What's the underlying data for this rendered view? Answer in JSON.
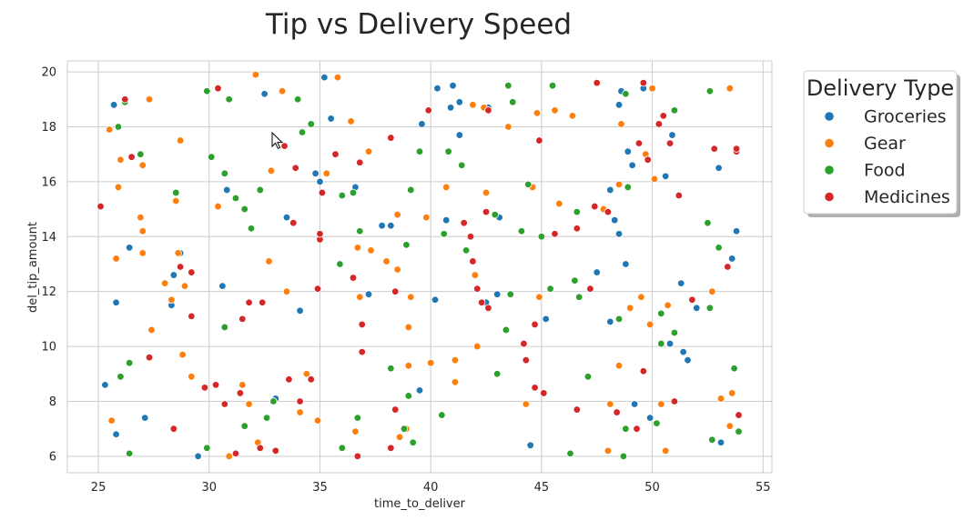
{
  "chart_data": {
    "type": "scatter",
    "title": "Tip vs Delivery Speed",
    "xlabel": "time_to_deliver",
    "ylabel": "del_tip_amount",
    "xlim": [
      23.6,
      55.4
    ],
    "ylim": [
      5.4,
      20.4
    ],
    "xticks": [
      25,
      30,
      35,
      40,
      45,
      50,
      55
    ],
    "yticks": [
      6,
      8,
      10,
      12,
      14,
      16,
      18,
      20
    ],
    "grid": true,
    "legend": {
      "title": "Delivery Type",
      "placement": "outside-top-right",
      "entries": [
        "Groceries",
        "Gear",
        "Food",
        "Medicines"
      ]
    },
    "series": [
      {
        "name": "Groceries",
        "color": "#1f77b4",
        "points": [
          [
            25.3,
            8.6
          ],
          [
            25.7,
            18.8
          ],
          [
            25.8,
            11.6
          ],
          [
            25.8,
            6.8
          ],
          [
            26.4,
            13.6
          ],
          [
            27.1,
            7.4
          ],
          [
            28.4,
            12.6
          ],
          [
            28.3,
            11.5
          ],
          [
            28.7,
            13.4
          ],
          [
            29.5,
            6.0
          ],
          [
            30.6,
            12.2
          ],
          [
            30.8,
            15.7
          ],
          [
            32.5,
            19.2
          ],
          [
            33.0,
            8.1
          ],
          [
            33.5,
            14.7
          ],
          [
            34.1,
            11.3
          ],
          [
            34.8,
            16.3
          ],
          [
            35.0,
            16.0
          ],
          [
            35.2,
            19.8
          ],
          [
            35.5,
            18.3
          ],
          [
            36.6,
            15.8
          ],
          [
            37.2,
            11.9
          ],
          [
            37.8,
            14.4
          ],
          [
            38.2,
            14.4
          ],
          [
            39.5,
            8.4
          ],
          [
            39.6,
            18.1
          ],
          [
            40.2,
            11.7
          ],
          [
            40.3,
            19.4
          ],
          [
            40.7,
            14.6
          ],
          [
            40.9,
            18.7
          ],
          [
            41.0,
            19.5
          ],
          [
            41.3,
            18.9
          ],
          [
            41.3,
            17.7
          ],
          [
            42.5,
            11.6
          ],
          [
            42.6,
            18.7
          ],
          [
            43.0,
            11.9
          ],
          [
            43.1,
            14.7
          ],
          [
            44.5,
            6.4
          ],
          [
            45.2,
            11.0
          ],
          [
            47.5,
            12.7
          ],
          [
            48.1,
            15.7
          ],
          [
            48.1,
            10.9
          ],
          [
            48.3,
            14.6
          ],
          [
            48.5,
            18.8
          ],
          [
            48.6,
            19.3
          ],
          [
            48.5,
            14.1
          ],
          [
            48.8,
            13.0
          ],
          [
            48.9,
            17.1
          ],
          [
            49.1,
            16.6
          ],
          [
            49.2,
            7.9
          ],
          [
            49.6,
            19.4
          ],
          [
            49.9,
            7.4
          ],
          [
            50.6,
            16.2
          ],
          [
            50.8,
            10.1
          ],
          [
            50.9,
            17.7
          ],
          [
            51.3,
            12.3
          ],
          [
            51.4,
            9.8
          ],
          [
            51.6,
            9.5
          ],
          [
            52.0,
            11.4
          ],
          [
            53.0,
            16.5
          ],
          [
            53.1,
            6.5
          ],
          [
            53.6,
            13.2
          ],
          [
            53.8,
            14.2
          ]
        ]
      },
      {
        "name": "Gear",
        "color": "#ff7f0e",
        "points": [
          [
            25.5,
            17.9
          ],
          [
            25.6,
            7.3
          ],
          [
            25.8,
            13.2
          ],
          [
            25.9,
            15.8
          ],
          [
            26.0,
            16.8
          ],
          [
            26.9,
            14.7
          ],
          [
            27.0,
            14.2
          ],
          [
            27.0,
            16.6
          ],
          [
            27.0,
            13.4
          ],
          [
            27.3,
            19.0
          ],
          [
            27.4,
            10.6
          ],
          [
            28.0,
            12.3
          ],
          [
            28.3,
            11.7
          ],
          [
            28.5,
            15.3
          ],
          [
            28.6,
            13.4
          ],
          [
            28.7,
            17.5
          ],
          [
            28.8,
            9.7
          ],
          [
            28.9,
            12.2
          ],
          [
            29.2,
            8.9
          ],
          [
            30.4,
            15.1
          ],
          [
            30.9,
            6.0
          ],
          [
            31.5,
            8.6
          ],
          [
            31.8,
            7.9
          ],
          [
            32.1,
            19.9
          ],
          [
            32.2,
            6.5
          ],
          [
            32.7,
            13.1
          ],
          [
            32.8,
            16.4
          ],
          [
            33.3,
            19.3
          ],
          [
            33.5,
            12.0
          ],
          [
            34.1,
            7.6
          ],
          [
            34.4,
            9.0
          ],
          [
            34.9,
            7.3
          ],
          [
            35.3,
            16.3
          ],
          [
            35.8,
            19.8
          ],
          [
            36.4,
            18.2
          ],
          [
            36.6,
            6.9
          ],
          [
            36.7,
            13.6
          ],
          [
            36.8,
            11.8
          ],
          [
            37.2,
            17.1
          ],
          [
            37.3,
            13.5
          ],
          [
            38.0,
            13.1
          ],
          [
            38.5,
            14.8
          ],
          [
            38.5,
            12.8
          ],
          [
            38.6,
            6.7
          ],
          [
            38.9,
            7.0
          ],
          [
            39.0,
            10.7
          ],
          [
            39.0,
            9.3
          ],
          [
            39.1,
            11.8
          ],
          [
            39.8,
            14.7
          ],
          [
            40.0,
            9.4
          ],
          [
            40.7,
            15.8
          ],
          [
            41.1,
            9.5
          ],
          [
            41.1,
            8.7
          ],
          [
            41.9,
            18.8
          ],
          [
            42.0,
            12.6
          ],
          [
            42.1,
            10.0
          ],
          [
            42.4,
            18.7
          ],
          [
            42.5,
            15.6
          ],
          [
            43.5,
            18.0
          ],
          [
            44.3,
            7.9
          ],
          [
            44.6,
            15.8
          ],
          [
            44.8,
            18.5
          ],
          [
            44.9,
            11.8
          ],
          [
            45.6,
            18.6
          ],
          [
            45.8,
            15.2
          ],
          [
            46.4,
            18.4
          ],
          [
            46.6,
            14.9
          ],
          [
            47.8,
            15.0
          ],
          [
            48.0,
            6.2
          ],
          [
            48.1,
            7.9
          ],
          [
            48.5,
            9.3
          ],
          [
            48.5,
            15.9
          ],
          [
            48.6,
            18.1
          ],
          [
            49.0,
            11.4
          ],
          [
            49.5,
            11.8
          ],
          [
            49.7,
            17.0
          ],
          [
            49.9,
            10.8
          ],
          [
            50.0,
            19.4
          ],
          [
            50.1,
            16.1
          ],
          [
            50.4,
            7.9
          ],
          [
            50.6,
            6.2
          ],
          [
            50.7,
            11.5
          ],
          [
            52.7,
            12.0
          ],
          [
            53.1,
            8.1
          ],
          [
            53.5,
            7.1
          ],
          [
            53.5,
            19.4
          ],
          [
            53.6,
            8.3
          ]
        ]
      },
      {
        "name": "Food",
        "color": "#2ca02c",
        "points": [
          [
            25.9,
            18.0
          ],
          [
            26.0,
            8.9
          ],
          [
            26.2,
            18.9
          ],
          [
            26.4,
            9.4
          ],
          [
            26.4,
            6.1
          ],
          [
            26.9,
            17.0
          ],
          [
            28.5,
            15.6
          ],
          [
            29.9,
            19.3
          ],
          [
            29.9,
            6.3
          ],
          [
            30.1,
            16.9
          ],
          [
            30.7,
            16.3
          ],
          [
            30.7,
            10.7
          ],
          [
            30.9,
            19.0
          ],
          [
            31.2,
            15.4
          ],
          [
            31.6,
            15.0
          ],
          [
            31.6,
            7.1
          ],
          [
            31.9,
            14.3
          ],
          [
            32.3,
            15.7
          ],
          [
            32.6,
            7.4
          ],
          [
            32.9,
            8.0
          ],
          [
            34.0,
            19.0
          ],
          [
            34.2,
            17.8
          ],
          [
            34.6,
            18.1
          ],
          [
            35.9,
            13.0
          ],
          [
            36.0,
            15.5
          ],
          [
            36.0,
            6.3
          ],
          [
            36.5,
            15.6
          ],
          [
            36.7,
            7.4
          ],
          [
            36.8,
            14.2
          ],
          [
            38.2,
            9.2
          ],
          [
            38.8,
            7.0
          ],
          [
            38.9,
            13.7
          ],
          [
            39.0,
            8.2
          ],
          [
            39.1,
            15.7
          ],
          [
            39.2,
            6.5
          ],
          [
            39.5,
            17.1
          ],
          [
            40.5,
            7.5
          ],
          [
            40.6,
            14.1
          ],
          [
            40.8,
            17.1
          ],
          [
            41.4,
            16.6
          ],
          [
            41.6,
            13.5
          ],
          [
            42.9,
            14.8
          ],
          [
            43.0,
            9.0
          ],
          [
            43.4,
            10.6
          ],
          [
            43.5,
            19.5
          ],
          [
            43.6,
            11.9
          ],
          [
            43.7,
            18.9
          ],
          [
            44.1,
            14.2
          ],
          [
            44.4,
            15.9
          ],
          [
            45.0,
            14.0
          ],
          [
            45.4,
            12.1
          ],
          [
            45.5,
            19.5
          ],
          [
            46.3,
            6.1
          ],
          [
            46.5,
            12.4
          ],
          [
            46.6,
            14.9
          ],
          [
            46.7,
            11.8
          ],
          [
            47.1,
            8.9
          ],
          [
            48.5,
            11.0
          ],
          [
            48.7,
            6.0
          ],
          [
            48.8,
            7.0
          ],
          [
            48.8,
            19.2
          ],
          [
            48.9,
            15.8
          ],
          [
            50.2,
            7.2
          ],
          [
            50.4,
            11.2
          ],
          [
            50.4,
            10.1
          ],
          [
            51.0,
            18.6
          ],
          [
            51.0,
            10.5
          ],
          [
            52.5,
            14.5
          ],
          [
            52.6,
            19.3
          ],
          [
            52.6,
            11.4
          ],
          [
            52.7,
            6.6
          ],
          [
            53.0,
            13.6
          ],
          [
            53.7,
            9.2
          ],
          [
            53.9,
            6.9
          ]
        ]
      },
      {
        "name": "Medicines",
        "color": "#d62728",
        "points": [
          [
            25.1,
            15.1
          ],
          [
            26.2,
            19.0
          ],
          [
            26.5,
            16.9
          ],
          [
            27.3,
            9.6
          ],
          [
            28.4,
            7.0
          ],
          [
            28.7,
            12.9
          ],
          [
            29.2,
            12.7
          ],
          [
            29.2,
            11.1
          ],
          [
            29.8,
            8.5
          ],
          [
            30.3,
            8.6
          ],
          [
            30.4,
            19.4
          ],
          [
            30.7,
            7.9
          ],
          [
            31.2,
            6.1
          ],
          [
            31.4,
            8.3
          ],
          [
            31.5,
            11.0
          ],
          [
            31.8,
            11.6
          ],
          [
            32.3,
            6.3
          ],
          [
            32.4,
            11.6
          ],
          [
            33.0,
            6.2
          ],
          [
            33.4,
            17.3
          ],
          [
            33.6,
            8.8
          ],
          [
            33.8,
            14.5
          ],
          [
            33.9,
            16.5
          ],
          [
            34.1,
            8.0
          ],
          [
            34.6,
            8.8
          ],
          [
            34.9,
            12.1
          ],
          [
            35.0,
            13.9
          ],
          [
            35.0,
            14.1
          ],
          [
            35.1,
            15.6
          ],
          [
            35.7,
            17.0
          ],
          [
            36.5,
            12.5
          ],
          [
            36.7,
            6.0
          ],
          [
            36.8,
            16.7
          ],
          [
            36.9,
            10.8
          ],
          [
            36.9,
            9.8
          ],
          [
            38.2,
            17.6
          ],
          [
            38.2,
            6.3
          ],
          [
            38.4,
            12.0
          ],
          [
            38.4,
            7.7
          ],
          [
            39.9,
            18.6
          ],
          [
            41.5,
            14.5
          ],
          [
            41.8,
            14.0
          ],
          [
            41.9,
            13.1
          ],
          [
            42.1,
            12.1
          ],
          [
            42.3,
            11.6
          ],
          [
            42.5,
            14.9
          ],
          [
            42.6,
            11.4
          ],
          [
            42.6,
            18.6
          ],
          [
            44.2,
            10.1
          ],
          [
            44.3,
            9.5
          ],
          [
            44.7,
            10.8
          ],
          [
            44.7,
            8.5
          ],
          [
            44.9,
            17.5
          ],
          [
            45.1,
            8.3
          ],
          [
            45.6,
            14.1
          ],
          [
            46.6,
            14.3
          ],
          [
            46.6,
            7.7
          ],
          [
            47.2,
            12.1
          ],
          [
            47.4,
            15.1
          ],
          [
            47.5,
            19.6
          ],
          [
            48.0,
            14.9
          ],
          [
            48.4,
            7.6
          ],
          [
            49.3,
            7.0
          ],
          [
            49.4,
            17.4
          ],
          [
            49.6,
            19.6
          ],
          [
            49.6,
            9.1
          ],
          [
            49.8,
            16.8
          ],
          [
            50.3,
            18.1
          ],
          [
            50.5,
            18.4
          ],
          [
            50.8,
            17.4
          ],
          [
            51.0,
            8.0
          ],
          [
            51.2,
            15.5
          ],
          [
            51.8,
            11.7
          ],
          [
            52.8,
            17.2
          ],
          [
            53.4,
            12.9
          ],
          [
            53.8,
            17.1
          ],
          [
            53.8,
            17.2
          ],
          [
            53.9,
            7.5
          ]
        ]
      }
    ]
  }
}
